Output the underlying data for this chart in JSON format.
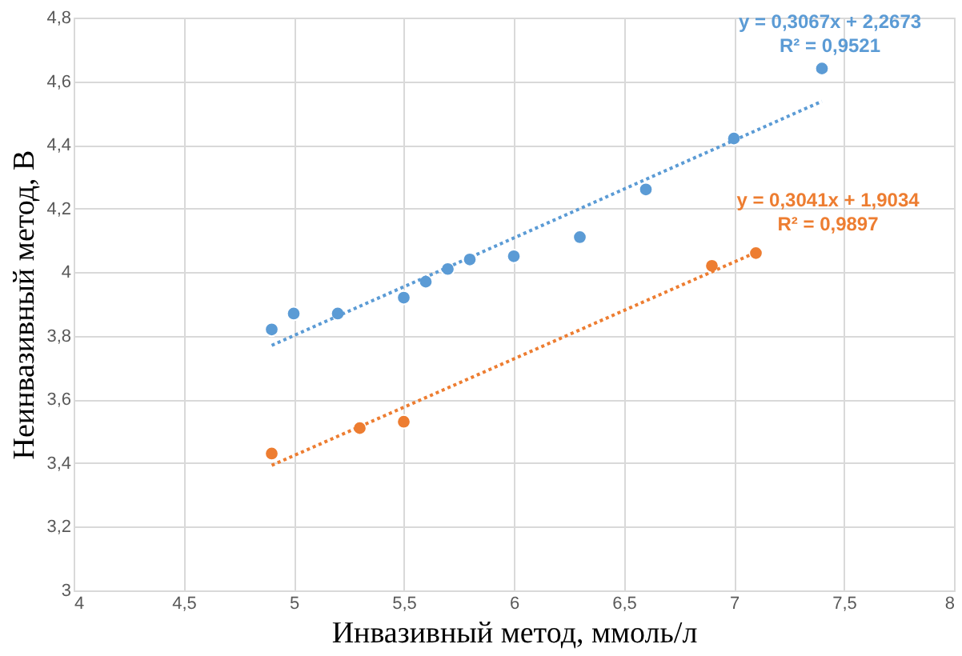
{
  "chart_data": {
    "type": "scatter",
    "xlabel": "Инвазивный метод, ммоль/л",
    "ylabel": "Неинвазивный метод, В",
    "series": [
      {
        "color": "#5b9bd5",
        "marker": "circle",
        "x": [
          4.9,
          5.0,
          5.2,
          5.5,
          5.6,
          5.7,
          5.8,
          6.0,
          6.3,
          6.6,
          7.0,
          7.4
        ],
        "values": [
          3.82,
          3.87,
          3.87,
          3.92,
          3.97,
          4.01,
          4.04,
          4.05,
          4.11,
          4.26,
          4.42,
          4.64
        ]
      },
      {
        "color": "#ed7d31",
        "marker": "circle",
        "x": [
          4.9,
          5.3,
          5.5,
          6.9,
          7.1
        ],
        "values": [
          3.43,
          3.51,
          3.53,
          4.02,
          4.06
        ]
      },
      {
        "type": "line",
        "color": "#5b9bd5",
        "line_style": "dotted",
        "x": [
          4.9,
          7.4
        ],
        "values": [
          3.77,
          4.537
        ]
      },
      {
        "type": "line",
        "color": "#ed7d31",
        "line_style": "dotted",
        "x": [
          4.9,
          7.1
        ],
        "values": [
          3.393,
          4.062
        ]
      }
    ],
    "annotations": [
      "y = 0,3067x + 2,2673",
      "R² = 0,9521",
      "y = 0,3041x + 1,9034",
      "R² = 0,9897"
    ],
    "xlim": [
      4,
      8
    ],
    "xticks": [
      4,
      {
        "value": 4.5,
        "label": "4,5"
      },
      5,
      {
        "value": 5.5,
        "label": "5,5"
      },
      6,
      {
        "value": 6.5,
        "label": "6,5"
      },
      7,
      {
        "value": 7.5,
        "label": "7,5"
      },
      8
    ],
    "ylim": [
      3,
      4.8
    ],
    "yticks": [
      3,
      {
        "value": 3.2,
        "label": "3,2"
      },
      {
        "value": 3.4,
        "label": "3,4"
      },
      {
        "value": 3.6,
        "label": "3,6"
      },
      {
        "value": 3.8,
        "label": "3,8"
      },
      4,
      {
        "value": 4.2,
        "label": "4,2"
      },
      {
        "value": 4.4,
        "label": "4,4"
      },
      {
        "value": 4.6,
        "label": "4,6"
      },
      {
        "value": 4.8,
        "label": "4,8"
      }
    ],
    "grid": true
  }
}
